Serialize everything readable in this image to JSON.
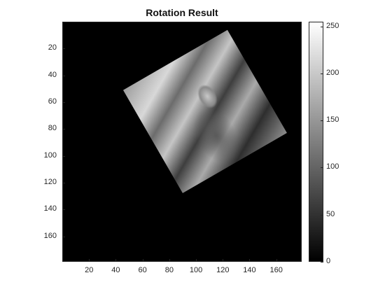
{
  "title": "Rotation Result",
  "axes": {
    "x_ticks": [
      "20",
      "40",
      "60",
      "80",
      "100",
      "120",
      "140",
      "160"
    ],
    "y_ticks": [
      "20",
      "40",
      "60",
      "80",
      "100",
      "120",
      "140",
      "160"
    ],
    "xlim": [
      0,
      179
    ],
    "ylim": [
      0,
      179
    ]
  },
  "colorbar": {
    "ticks": [
      "250",
      "200",
      "150",
      "100",
      "50",
      "0"
    ],
    "range": [
      0,
      255
    ]
  },
  "image": {
    "description_icon": "rotated-grayscale-image",
    "rotation_degrees": 30
  }
}
